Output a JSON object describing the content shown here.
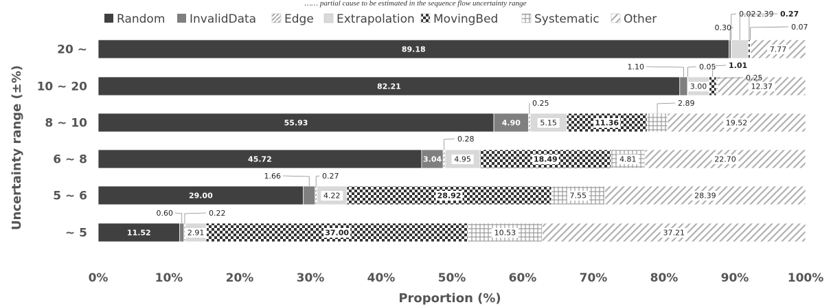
{
  "page": {
    "caption_fragment": "…… partial cause to be estimated in the sequence flow uncertainty range"
  },
  "colors": {
    "Random": "#404040",
    "InvalidData": "#7f7f7f",
    "Edge": "#b0b0b0",
    "Extrapolation": "#d9d9d9",
    "MovingBed": "#3c3c3c",
    "Systematic": "#a6a6a6",
    "Other": "#b0b0b0"
  },
  "chart_data": {
    "type": "bar",
    "orientation": "horizontal",
    "stacked": true,
    "title": "",
    "xlabel": "Proportion (%)",
    "ylabel": "Uncertainty range (±%)",
    "xlim": [
      0,
      100
    ],
    "x_ticks": [
      "0%",
      "10%",
      "20%",
      "30%",
      "40%",
      "50%",
      "60%",
      "70%",
      "80%",
      "90%",
      "100%"
    ],
    "legend_position": "top",
    "grid": false,
    "categories": [
      "20 ~",
      "10 ~ 20",
      "8 ~ 10",
      "6 ~ 8",
      "5 ~ 6",
      "~ 5"
    ],
    "series": [
      {
        "name": "Random",
        "values": [
          89.18,
          82.21,
          55.93,
          45.72,
          29.0,
          11.52
        ]
      },
      {
        "name": "InvalidData",
        "values": [
          0.3,
          1.1,
          4.9,
          3.04,
          1.66,
          0.6
        ]
      },
      {
        "name": "Edge",
        "values": [
          0.02,
          0.05,
          0.25,
          0.28,
          0.27,
          0.22
        ]
      },
      {
        "name": "Extrapolation",
        "values": [
          2.39,
          3.0,
          5.15,
          4.95,
          4.22,
          2.91
        ]
      },
      {
        "name": "MovingBed",
        "values": [
          0.27,
          1.01,
          11.36,
          18.49,
          28.92,
          37.0
        ]
      },
      {
        "name": "Systematic",
        "values": [
          0.07,
          0.25,
          2.89,
          4.81,
          7.55,
          10.53
        ]
      },
      {
        "name": "Other",
        "values": [
          7.77,
          12.37,
          19.52,
          22.7,
          28.39,
          37.21
        ]
      }
    ]
  }
}
